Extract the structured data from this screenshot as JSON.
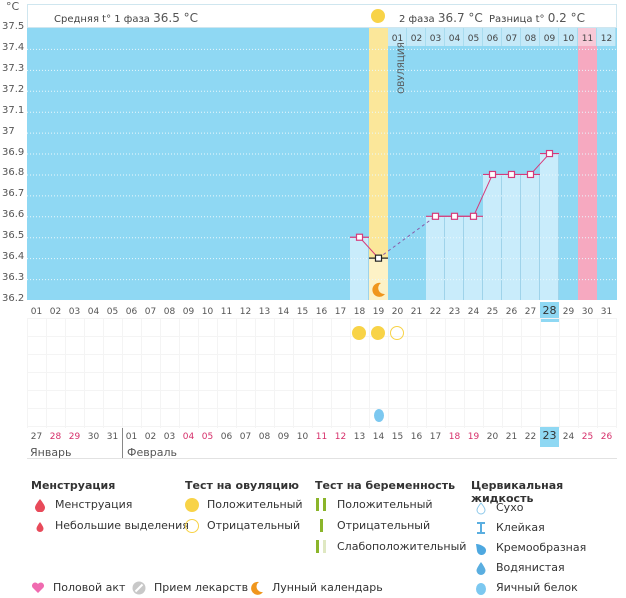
{
  "chart_data": {
    "type": "line",
    "title": "",
    "ylabel": "°C",
    "ylim": [
      36.2,
      37.5
    ],
    "yticks": [
      "37.5",
      "37.4",
      "37.3",
      "37.2",
      "37.1",
      "37",
      "36.9",
      "36.8",
      "36.7",
      "36.6",
      "36.5",
      "36.4",
      "36.3",
      "36.2"
    ],
    "x_days": [
      "01",
      "02",
      "03",
      "04",
      "05",
      "06",
      "07",
      "08",
      "09",
      "10",
      "11",
      "12",
      "13",
      "14",
      "15",
      "16",
      "17",
      "18",
      "19",
      "20",
      "21",
      "22",
      "23",
      "24",
      "25",
      "26",
      "27",
      "28",
      "29",
      "30",
      "31"
    ],
    "current_day": "28",
    "points": [
      {
        "day": 18,
        "temp": 36.5
      },
      {
        "day": 19,
        "temp": 36.4,
        "marked": true
      },
      {
        "day": 22,
        "temp": 36.6
      },
      {
        "day": 23,
        "temp": 36.6
      },
      {
        "day": 24,
        "temp": 36.6
      },
      {
        "day": 25,
        "temp": 36.8
      },
      {
        "day": 26,
        "temp": 36.8
      },
      {
        "day": 27,
        "temp": 36.8
      },
      {
        "day": 28,
        "temp": 36.9
      }
    ],
    "dashed_segment": [
      19,
      22
    ],
    "ovulation_day": 19,
    "ovulation_label": "ОВУЛЯЦИЯ",
    "menstruation_forecast_day": 30,
    "cycle_header_days": [
      "01",
      "02",
      "03",
      "04",
      "05",
      "06",
      "07",
      "08",
      "09",
      "10",
      "11",
      "12"
    ],
    "cycle_header_pink_index": 10,
    "phase1_label": "Средняя t° 1 фаза",
    "phase1_value": "36.5 °C",
    "phase2_label": "2 фаза",
    "phase2_value": "36.7 °C",
    "diff_label": "Разница t°",
    "diff_value": "0.2 °C",
    "ovulation_tests": [
      {
        "day": 18,
        "result": "positive"
      },
      {
        "day": 19,
        "result": "positive"
      },
      {
        "day": 20,
        "result": "negative"
      }
    ],
    "cervical_fluid": [
      {
        "day": 19,
        "type": "egg-white"
      }
    ],
    "moon_day": 19
  },
  "calendar": {
    "dates": [
      "27",
      "28",
      "29",
      "30",
      "31",
      "01",
      "02",
      "03",
      "04",
      "05",
      "06",
      "07",
      "08",
      "09",
      "10",
      "11",
      "12",
      "13",
      "14",
      "15",
      "16",
      "17",
      "18",
      "19",
      "20",
      "21",
      "22",
      "23",
      "24",
      "25",
      "26"
    ],
    "weekend_indices": [
      1,
      2,
      8,
      9,
      15,
      16,
      22,
      23,
      29,
      30
    ],
    "today_index": 27,
    "month1": "Январь",
    "month2": "Февраль"
  },
  "legend": {
    "menstruation": {
      "title": "Менструация",
      "items": [
        "Менструация",
        "Небольшие выделения"
      ]
    },
    "ovulation_test": {
      "title": "Тест на овуляцию",
      "items": [
        "Положительный",
        "Отрицательный"
      ]
    },
    "pregnancy_test": {
      "title": "Тест на беременность",
      "items": [
        "Положительный",
        "Отрицательный",
        "Слабоположительный"
      ]
    },
    "cervical": {
      "title": "Цервикальная жидкость",
      "items": [
        "Сухо",
        "Клейкая",
        "Кремообразная",
        "Водянистая",
        "Яичный белок"
      ]
    },
    "bottom": [
      "Половой акт",
      "Прием лекарств",
      "Лунный календарь"
    ]
  },
  "colors": {
    "plot_bg": "#8fd8f3",
    "bar": "#c9ecfb",
    "ovulation": "#fbe79a",
    "pink": "#f6a9c0",
    "line": "#d63a7a",
    "sun": "#f8d347",
    "moon": "#f0961c",
    "drop_blue": "#7cc8f0",
    "red": "#e84a5a",
    "green": "#8bb52a"
  }
}
